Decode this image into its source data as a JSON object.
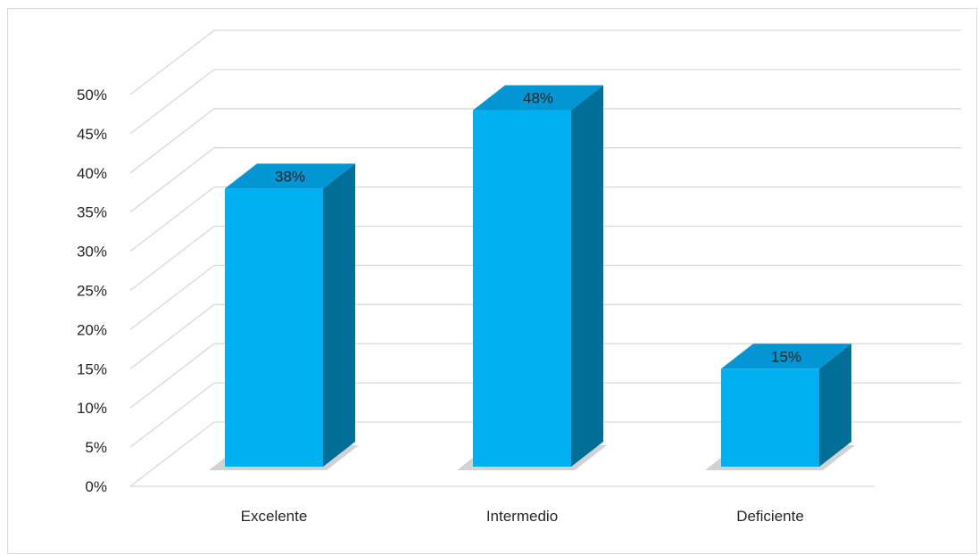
{
  "chart_data": {
    "type": "bar",
    "categories": [
      "Excelente",
      "Intermedio",
      "Deficiente"
    ],
    "values": [
      38,
      48,
      15
    ],
    "data_labels": [
      "38%",
      "48%",
      "15%"
    ],
    "y_ticks": [
      "0%",
      "5%",
      "10%",
      "15%",
      "20%",
      "25%",
      "30%",
      "35%",
      "40%",
      "45%",
      "50%"
    ],
    "ylim": [
      0,
      50
    ],
    "grid": true,
    "legend": "none",
    "title": "",
    "xlabel": "",
    "ylabel": "",
    "colors": {
      "bar_front": "#00b0f0",
      "bar_top": "#0396d4",
      "bar_side": "#006f98",
      "grid": "#d9d9d9"
    }
  }
}
